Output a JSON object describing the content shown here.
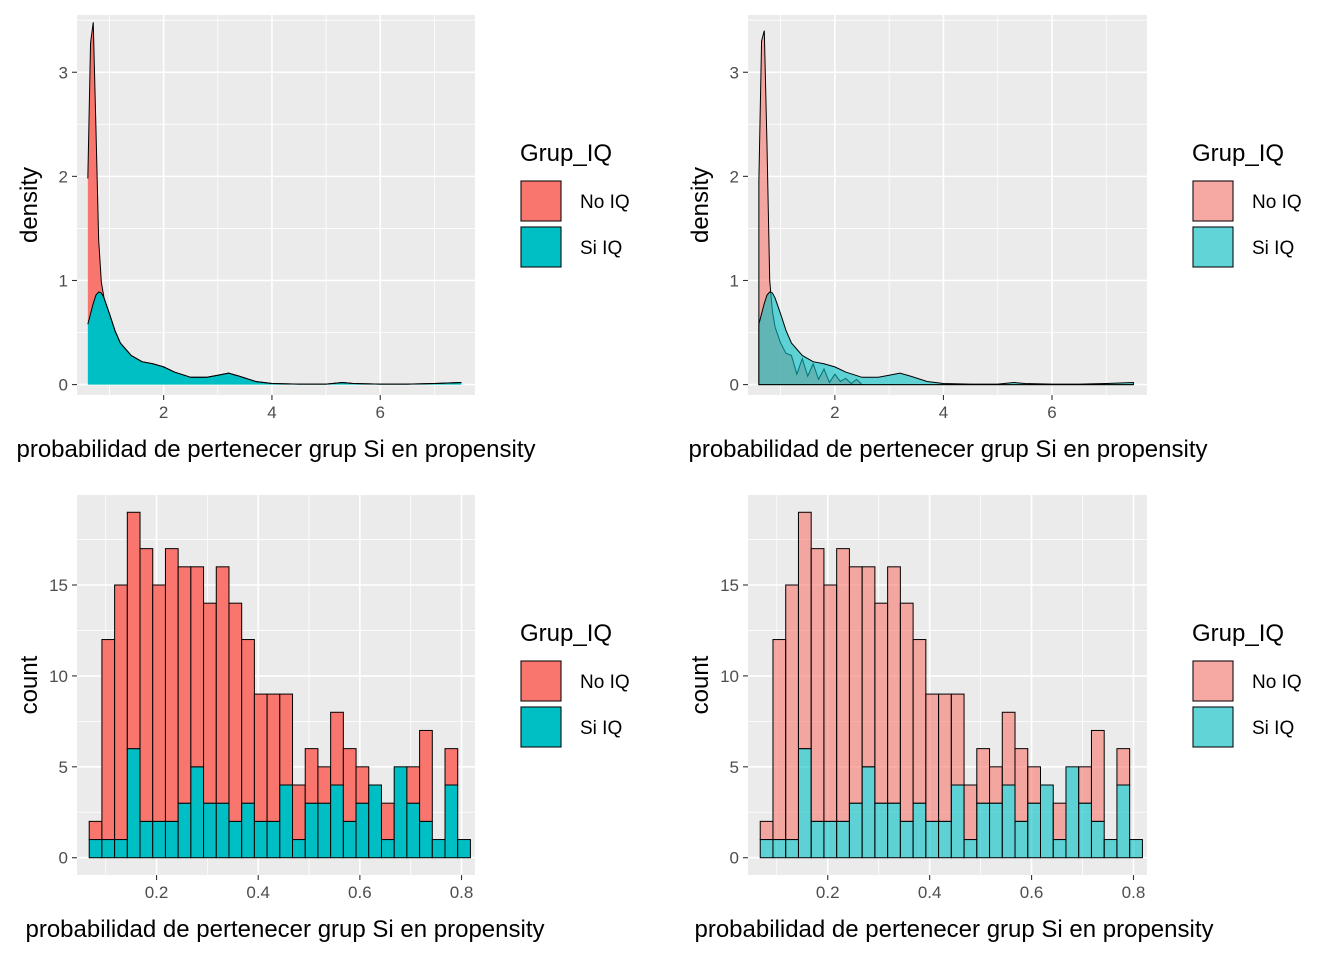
{
  "colors": {
    "panel_bg": "#EBEBEB",
    "grid": "#FFFFFF",
    "no_iq": "#F8766D",
    "si_iq": "#00BFC4",
    "outline": "#000000",
    "tick_text": "#4D4D4D",
    "text": "#000000"
  },
  "chart_data": [
    {
      "type": "area",
      "title": "",
      "xlabel": "probabilidad de pertenecer grup Si en propensity",
      "ylabel": "density",
      "xlim": [
        0.4,
        7.75
      ],
      "ylim": [
        -0.1,
        3.55
      ],
      "x_ticks": [
        2,
        4,
        6
      ],
      "y_ticks": [
        0,
        1,
        2,
        3
      ],
      "position": "stack",
      "fill_alpha": 1,
      "legend": {
        "title": "Grup_IQ",
        "entries": [
          "No IQ",
          "Si IQ"
        ],
        "placement": "right"
      },
      "series": [
        {
          "name": "No IQ",
          "x": [
            0.6,
            0.65,
            0.7,
            0.75,
            0.8,
            0.85,
            0.9,
            1.0,
            1.2,
            1.5,
            2.0,
            3.0,
            4.0,
            7.5
          ],
          "y": [
            1.4,
            2.6,
            2.7,
            1.6,
            0.5,
            0.1,
            0.0,
            0.0,
            0.0,
            0.0,
            0.0,
            0.0,
            0.0,
            0.0
          ]
        },
        {
          "name": "Si IQ",
          "x": [
            0.6,
            0.65,
            0.7,
            0.75,
            0.8,
            0.85,
            0.9,
            1.0,
            1.1,
            1.2,
            1.4,
            1.6,
            1.8,
            2.0,
            2.2,
            2.5,
            2.8,
            3.0,
            3.2,
            3.4,
            3.7,
            4.0,
            4.5,
            5.0,
            5.3,
            5.5,
            6.0,
            6.5,
            7.0,
            7.5
          ],
          "y": [
            0.58,
            0.68,
            0.78,
            0.86,
            0.89,
            0.88,
            0.83,
            0.68,
            0.52,
            0.4,
            0.28,
            0.22,
            0.2,
            0.17,
            0.12,
            0.07,
            0.07,
            0.09,
            0.11,
            0.08,
            0.03,
            0.01,
            0.005,
            0.005,
            0.02,
            0.01,
            0.005,
            0.005,
            0.01,
            0.02
          ]
        }
      ]
    },
    {
      "type": "area",
      "title": "",
      "xlabel": "probabilidad de pertenecer grup Si en propensity",
      "ylabel": "density",
      "xlim": [
        0.4,
        7.75
      ],
      "ylim": [
        -0.1,
        3.55
      ],
      "x_ticks": [
        2,
        4,
        6
      ],
      "y_ticks": [
        0,
        1,
        2,
        3
      ],
      "position": "identity",
      "fill_alpha": 0.6,
      "legend": {
        "title": "Grup_IQ",
        "entries": [
          "No IQ",
          "Si IQ"
        ],
        "placement": "right"
      },
      "series": [
        {
          "name": "No IQ",
          "x": [
            0.6,
            0.65,
            0.7,
            0.75,
            0.8,
            0.85,
            0.9,
            1.0,
            1.1,
            1.2,
            1.3,
            1.4,
            1.5,
            1.6,
            1.7,
            1.8,
            1.9,
            2.0,
            2.1,
            2.2,
            2.3,
            2.4,
            2.5,
            3.0,
            4.0,
            7.5
          ],
          "y": [
            1.95,
            3.3,
            3.4,
            2.3,
            1.0,
            0.7,
            0.55,
            0.4,
            0.3,
            0.28,
            0.1,
            0.25,
            0.08,
            0.2,
            0.05,
            0.15,
            0.02,
            0.1,
            0.03,
            0.06,
            0.01,
            0.05,
            0.0,
            0.0,
            0.0,
            0.0
          ]
        },
        {
          "name": "Si IQ",
          "x": [
            0.6,
            0.65,
            0.7,
            0.75,
            0.8,
            0.85,
            0.9,
            1.0,
            1.1,
            1.2,
            1.4,
            1.6,
            1.8,
            2.0,
            2.2,
            2.5,
            2.8,
            3.0,
            3.2,
            3.4,
            3.7,
            4.0,
            4.5,
            5.0,
            5.3,
            5.5,
            6.0,
            6.5,
            7.0,
            7.5
          ],
          "y": [
            0.58,
            0.68,
            0.78,
            0.86,
            0.89,
            0.88,
            0.83,
            0.68,
            0.52,
            0.4,
            0.28,
            0.22,
            0.2,
            0.17,
            0.12,
            0.07,
            0.07,
            0.09,
            0.11,
            0.08,
            0.03,
            0.01,
            0.005,
            0.005,
            0.02,
            0.01,
            0.005,
            0.005,
            0.01,
            0.02
          ]
        }
      ]
    },
    {
      "type": "bar",
      "title": "",
      "xlabel": "probabilidad de pertenecer grup Si en propensity",
      "ylabel": "count",
      "xlim": [
        0.0435,
        0.8265
      ],
      "ylim": [
        -0.95,
        19.95
      ],
      "x_ticks": [
        0.2,
        0.4,
        0.6,
        0.8
      ],
      "x_tick_labels": [
        "0.2",
        "0.4",
        "0.6",
        "0.8"
      ],
      "y_ticks": [
        0,
        5,
        10,
        15
      ],
      "bin_width": 0.025,
      "position": "stack",
      "fill_alpha": 1,
      "legend": {
        "title": "Grup_IQ",
        "entries": [
          "No IQ",
          "Si IQ"
        ],
        "placement": "right"
      },
      "bin_centers": [
        0.08,
        0.105,
        0.13,
        0.155,
        0.18,
        0.205,
        0.23,
        0.255,
        0.28,
        0.305,
        0.33,
        0.355,
        0.38,
        0.405,
        0.43,
        0.455,
        0.48,
        0.505,
        0.53,
        0.555,
        0.58,
        0.605,
        0.63,
        0.655,
        0.68,
        0.705,
        0.73,
        0.755,
        0.78,
        0.805
      ],
      "series": [
        {
          "name": "No IQ",
          "values": [
            1,
            11,
            14,
            13,
            15,
            13,
            15,
            13,
            11,
            11,
            13,
            12,
            9,
            7,
            7,
            5,
            3,
            3,
            2,
            4,
            4,
            2,
            0,
            2,
            0,
            2,
            5,
            0,
            2,
            0
          ]
        },
        {
          "name": "Si IQ",
          "values": [
            1,
            1,
            1,
            6,
            2,
            2,
            2,
            3,
            5,
            3,
            3,
            2,
            3,
            2,
            2,
            4,
            1,
            3,
            3,
            4,
            2,
            3,
            4,
            1,
            5,
            3,
            2,
            1,
            4,
            1
          ]
        }
      ]
    },
    {
      "type": "bar",
      "title": "",
      "xlabel": "probabilidad de pertenecer grup Si en propensity",
      "ylabel": "count",
      "xlim": [
        0.0435,
        0.8265
      ],
      "ylim": [
        -0.95,
        19.95
      ],
      "x_ticks": [
        0.2,
        0.4,
        0.6,
        0.8
      ],
      "x_tick_labels": [
        "0.2",
        "0.4",
        "0.6",
        "0.8"
      ],
      "y_ticks": [
        0,
        5,
        10,
        15
      ],
      "bin_width": 0.025,
      "position": "stack",
      "fill_alpha": 0.6,
      "legend": {
        "title": "Grup_IQ",
        "entries": [
          "No IQ",
          "Si IQ"
        ],
        "placement": "right"
      },
      "bin_centers": [
        0.08,
        0.105,
        0.13,
        0.155,
        0.18,
        0.205,
        0.23,
        0.255,
        0.28,
        0.305,
        0.33,
        0.355,
        0.38,
        0.405,
        0.43,
        0.455,
        0.48,
        0.505,
        0.53,
        0.555,
        0.58,
        0.605,
        0.63,
        0.655,
        0.68,
        0.705,
        0.73,
        0.755,
        0.78,
        0.805
      ],
      "series": [
        {
          "name": "No IQ",
          "values": [
            1,
            11,
            14,
            13,
            15,
            13,
            15,
            13,
            11,
            11,
            13,
            12,
            9,
            7,
            7,
            5,
            3,
            3,
            2,
            4,
            4,
            2,
            0,
            2,
            0,
            2,
            5,
            0,
            2,
            0
          ]
        },
        {
          "name": "Si IQ",
          "values": [
            1,
            1,
            1,
            6,
            2,
            2,
            2,
            3,
            5,
            3,
            3,
            2,
            3,
            2,
            2,
            4,
            1,
            3,
            3,
            4,
            2,
            3,
            4,
            1,
            5,
            3,
            2,
            1,
            4,
            1
          ]
        }
      ]
    }
  ]
}
